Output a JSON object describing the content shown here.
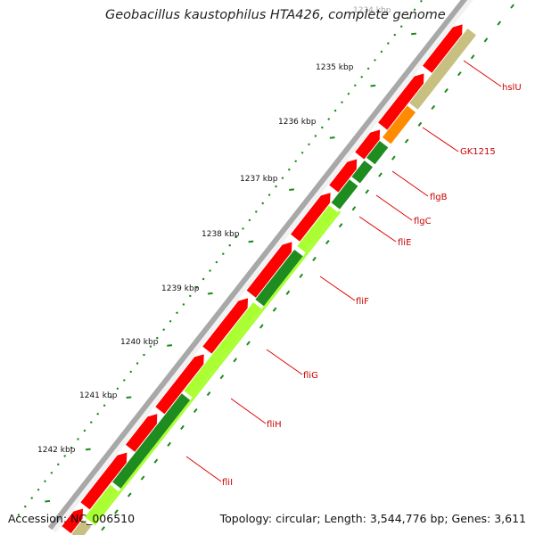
{
  "title": "Geobacillus kaustophilus HTA426, complete genome",
  "accession": "Accession: NC_006510",
  "topology": "Topology: circular; Length: 3,544,776 bp; Genes: 3,611",
  "colors": {
    "backbone": "#a8a8a8",
    "cds_forward": "#ff0000",
    "cds_reverse_dark": "#1e8c1e",
    "cds_reverse_light": "#aaff33",
    "khaki": "#c8c080",
    "orange": "#ff8c00",
    "tick": "#1a8a1a",
    "label": "#cc0000"
  },
  "kbp_ticks": [
    {
      "label": "1234 kbp",
      "faded": true
    },
    {
      "label": "1235 kbp"
    },
    {
      "label": "1236 kbp"
    },
    {
      "label": "1237 kbp"
    },
    {
      "label": "1238 kbp"
    },
    {
      "label": "1239 kbp"
    },
    {
      "label": "1240 kbp"
    },
    {
      "label": "1241 kbp"
    },
    {
      "label": "1242 kbp"
    }
  ],
  "gene_labels": [
    "hslU",
    "GK1215",
    "flgB",
    "flgC",
    "fliE",
    "fliF",
    "fliG",
    "fliH",
    "fliI"
  ]
}
